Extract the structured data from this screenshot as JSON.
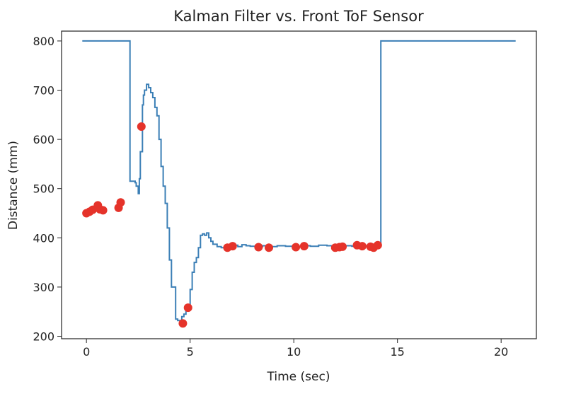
{
  "chart_data": {
    "type": "line",
    "title": "Kalman Filter vs. Front ToF Sensor",
    "xlabel": "Time (sec)",
    "ylabel": "Distance (mm)",
    "xlim": [
      -1.2,
      21.7
    ],
    "ylim": [
      195,
      820
    ],
    "xticks": [
      0,
      5,
      10,
      15,
      20
    ],
    "yticks": [
      200,
      300,
      400,
      500,
      600,
      700,
      800
    ],
    "grid": false,
    "colors": {
      "line": "#3b7fb6",
      "points": "#e5332a",
      "axes": "#222222"
    },
    "series": [
      {
        "type": "line",
        "x": [
          -0.2,
          2.1,
          2.1,
          2.35,
          2.4,
          2.5,
          2.55,
          2.6,
          2.7,
          2.75,
          2.8,
          2.9,
          3.0,
          3.1,
          3.2,
          3.3,
          3.4,
          3.5,
          3.6,
          3.7,
          3.8,
          3.9,
          4.0,
          4.1,
          4.2,
          4.3,
          4.4,
          4.5,
          4.6,
          4.7,
          4.8,
          4.9,
          5.0,
          5.1,
          5.2,
          5.3,
          5.4,
          5.5,
          5.6,
          5.7,
          5.8,
          5.9,
          6.0,
          6.1,
          6.3,
          6.5,
          6.7,
          6.9,
          7.1,
          7.3,
          7.5,
          7.7,
          7.9,
          8.2,
          8.5,
          8.8,
          9.2,
          9.6,
          10.0,
          10.4,
          10.8,
          11.2,
          11.6,
          12.0,
          12.4,
          12.8,
          13.2,
          13.6,
          14.0,
          14.2,
          14.2,
          20.7
        ],
        "y": [
          800,
          800,
          515,
          512,
          505,
          490,
          520,
          575,
          670,
          690,
          700,
          712,
          705,
          695,
          685,
          665,
          648,
          600,
          545,
          505,
          470,
          420,
          355,
          300,
          300,
          235,
          232,
          232,
          240,
          245,
          255,
          262,
          295,
          330,
          350,
          360,
          380,
          405,
          408,
          405,
          410,
          400,
          393,
          387,
          382,
          380,
          381,
          383,
          385,
          382,
          386,
          384,
          383,
          382,
          384,
          382,
          384,
          383,
          382,
          384,
          383,
          385,
          384,
          382,
          384,
          383,
          384,
          383,
          384,
          385,
          800,
          800
        ]
      },
      {
        "type": "scatter",
        "x": [
          0.0,
          0.15,
          0.3,
          0.55,
          0.65,
          0.8,
          1.55,
          1.65,
          2.65,
          4.65,
          4.9,
          6.8,
          7.05,
          8.3,
          8.8,
          10.1,
          10.5,
          12.0,
          12.2,
          12.35,
          13.05,
          13.3,
          13.7,
          13.85,
          14.05
        ],
        "y": [
          450,
          453,
          457,
          466,
          458,
          456,
          461,
          472,
          626,
          226,
          258,
          380,
          383,
          381,
          380,
          381,
          383,
          380,
          381,
          382,
          385,
          383,
          382,
          380,
          385
        ]
      }
    ]
  }
}
